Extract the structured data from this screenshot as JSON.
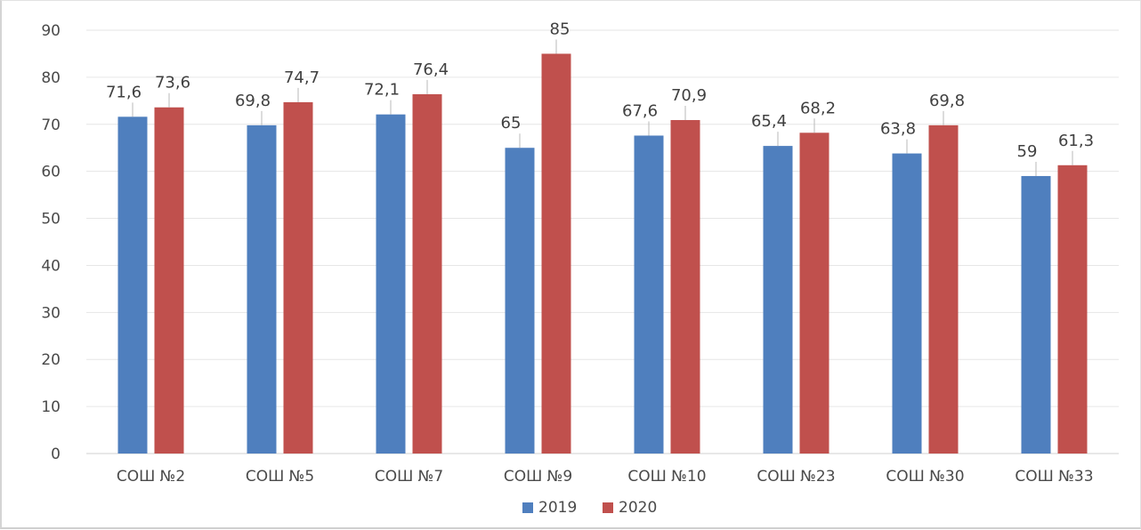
{
  "chart_data": {
    "type": "bar",
    "title": "",
    "xlabel": "",
    "ylabel": "",
    "categories": [
      "СОШ №2",
      "СОШ №5",
      "СОШ №7",
      "СОШ №9",
      "СОШ №10",
      "СОШ №23",
      "СОШ №30",
      "СОШ №33"
    ],
    "series": [
      {
        "name": "2019",
        "color": "#4f7fbe",
        "values": [
          71.6,
          69.8,
          72.1,
          65,
          67.6,
          65.4,
          63.8,
          59
        ],
        "labels": [
          "71,6",
          "69,8",
          "72,1",
          "65",
          "67,6",
          "65,4",
          "63,8",
          "59"
        ]
      },
      {
        "name": "2020",
        "color": "#c0504d",
        "values": [
          73.6,
          74.7,
          76.4,
          85,
          70.9,
          68.2,
          69.8,
          61.3
        ],
        "labels": [
          "73,6",
          "74,7",
          "76,4",
          "85",
          "70,9",
          "68,2",
          "69,8",
          "61,3"
        ]
      }
    ],
    "ylim": [
      0,
      90
    ],
    "yticks": [
      0,
      10,
      20,
      30,
      40,
      50,
      60,
      70,
      80,
      90
    ],
    "grid": true,
    "legend": "bottom-center"
  }
}
